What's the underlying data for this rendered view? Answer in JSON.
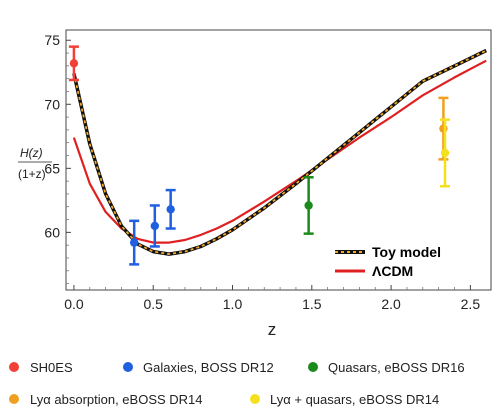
{
  "chart_data": {
    "type": "line",
    "xlabel": "z",
    "ylabel_num": "H(z)",
    "ylabel_den": "(1+z)",
    "xlim": [
      -0.05,
      2.63
    ],
    "ylim": [
      55.5,
      75.8
    ],
    "xticks": [
      {
        "value": 0.0,
        "label": "0.0"
      },
      {
        "value": 0.5,
        "label": "0.5"
      },
      {
        "value": 1.0,
        "label": "1.0"
      },
      {
        "value": 1.5,
        "label": "1.5"
      },
      {
        "value": 2.0,
        "label": "2.0"
      },
      {
        "value": 2.5,
        "label": "2.5"
      }
    ],
    "yticks": [
      {
        "value": 60,
        "label": "60"
      },
      {
        "value": 65,
        "label": "65"
      },
      {
        "value": 70,
        "label": "70"
      },
      {
        "value": 75,
        "label": "75"
      }
    ],
    "curves": [
      {
        "name": "Toy model",
        "color": "#111111",
        "dash_color": "#f5a623",
        "x": [
          0.0,
          0.1,
          0.2,
          0.3,
          0.4,
          0.5,
          0.6,
          0.7,
          0.8,
          0.9,
          1.0,
          1.2,
          1.4,
          1.6,
          1.8,
          2.0,
          2.2,
          2.4,
          2.6
        ],
        "y": [
          72.4,
          66.9,
          63.0,
          60.5,
          59.1,
          58.5,
          58.3,
          58.5,
          58.9,
          59.5,
          60.2,
          61.9,
          63.8,
          65.8,
          67.8,
          69.8,
          71.8,
          73.0,
          74.2
        ]
      },
      {
        "name": "ΛCDM",
        "color": "#e02020",
        "x": [
          0.0,
          0.1,
          0.2,
          0.3,
          0.4,
          0.5,
          0.6,
          0.7,
          0.8,
          0.9,
          1.0,
          1.2,
          1.4,
          1.6,
          1.8,
          2.0,
          2.2,
          2.4,
          2.6
        ],
        "y": [
          67.4,
          63.8,
          61.6,
          60.3,
          59.5,
          59.2,
          59.2,
          59.4,
          59.8,
          60.3,
          60.9,
          62.4,
          64.0,
          65.7,
          67.4,
          69.0,
          70.7,
          72.1,
          73.4
        ]
      }
    ],
    "points": [
      {
        "name": "SH0ES",
        "color": "#f04037",
        "x": [
          0.0
        ],
        "y": [
          73.2
        ],
        "err": [
          1.3
        ]
      },
      {
        "name": "Galaxies, BOSS DR12",
        "color": "#1f5fe0",
        "x": [
          0.38,
          0.51,
          0.61
        ],
        "y": [
          59.2,
          60.5,
          61.8
        ],
        "err": [
          1.7,
          1.6,
          1.5
        ]
      },
      {
        "name": "Quasars, eBOSS DR16",
        "color": "#1a8a1a",
        "x": [
          1.48
        ],
        "y": [
          62.1
        ],
        "err": [
          2.2
        ]
      },
      {
        "name": "Lyα absorption, eBOSS DR14",
        "color": "#f0a020",
        "x": [
          2.33
        ],
        "y": [
          68.1
        ],
        "err": [
          2.4
        ]
      },
      {
        "name": "Lyα + quasars, eBOSS DR14",
        "color": "#f5e020",
        "x": [
          2.34
        ],
        "y": [
          66.2
        ],
        "err": [
          2.6
        ]
      }
    ],
    "legend_placement": "bottom-right",
    "bottom_legend_placement": "below"
  }
}
